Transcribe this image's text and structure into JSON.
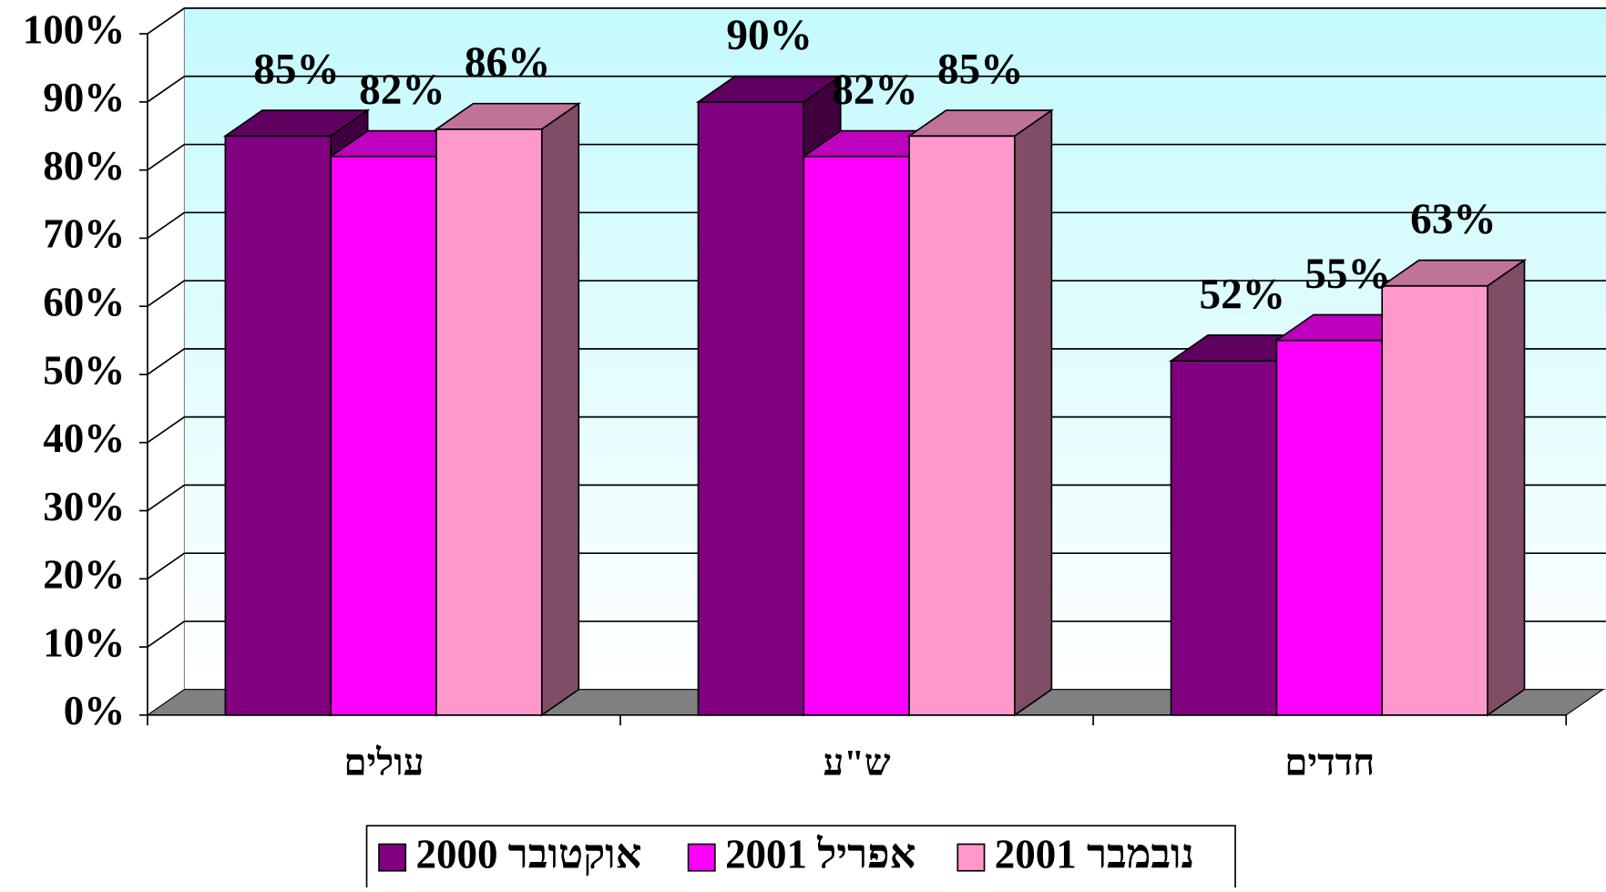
{
  "chart_data": {
    "type": "bar3d",
    "categories": [
      "עולים",
      "ש\"ע",
      "חדדים"
    ],
    "series": [
      {
        "name": "אוקטובר 2000",
        "color": "#800080",
        "values": [
          85,
          90,
          52
        ],
        "value_labels": [
          "85%",
          "90%",
          "52%"
        ]
      },
      {
        "name": "אפריל 2001",
        "color": "#ff00ff",
        "values": [
          82,
          82,
          55
        ],
        "value_labels": [
          "82%",
          "82%",
          "55%"
        ]
      },
      {
        "name": "נובמבר 2001",
        "color": "#ff99cc",
        "values": [
          86,
          85,
          63
        ],
        "value_labels": [
          "86%",
          "85%",
          "63%"
        ]
      }
    ],
    "ylim": [
      0,
      100
    ],
    "yticks": [
      {
        "value": 0,
        "label": "0%"
      },
      {
        "value": 10,
        "label": "10%"
      },
      {
        "value": 20,
        "label": "20%"
      },
      {
        "value": 30,
        "label": "30%"
      },
      {
        "value": 40,
        "label": "40%"
      },
      {
        "value": 50,
        "label": "50%"
      },
      {
        "value": 60,
        "label": "60%"
      },
      {
        "value": 70,
        "label": "70%"
      },
      {
        "value": 80,
        "label": "80%"
      },
      {
        "value": 90,
        "label": "90%"
      },
      {
        "value": 100,
        "label": "100%"
      }
    ],
    "grid": true,
    "legend": "bottom"
  }
}
